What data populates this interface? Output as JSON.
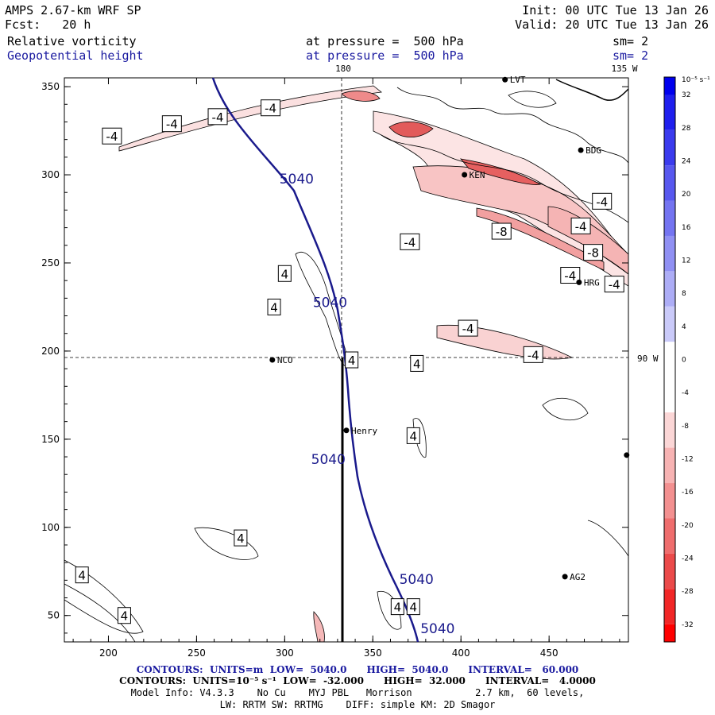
{
  "header": {
    "model": "AMPS 2.67-km WRF SP",
    "fcst": "Fcst:   20 h",
    "init": "Init: 00 UTC Tue 13 Jan 26",
    "valid": "Valid: 20 UTC Tue 13 Jan 26",
    "field1": "Relative vorticity",
    "field2": "Geopotential height",
    "level1": "at pressure =  500 hPa",
    "level2": "at pressure =  500 hPa",
    "sm1": "sm= 2",
    "sm2": "sm= 2"
  },
  "map_labels": {
    "lon_180": "180",
    "lon_135w": "135 W",
    "lat_90w": "90 W"
  },
  "axes": {
    "x_ticks": [
      "200",
      "250",
      "300",
      "350",
      "400",
      "450"
    ],
    "y_ticks": [
      "350",
      "300",
      "250",
      "200",
      "150",
      "100",
      "50"
    ]
  },
  "stations": [
    {
      "name": "LVT",
      "x": 425,
      "y": 354
    },
    {
      "name": "BDG",
      "x": 468,
      "y": 314
    },
    {
      "name": "KEN",
      "x": 402,
      "y": 300
    },
    {
      "name": "HRG",
      "x": 467,
      "y": 239
    },
    {
      "name": "NCO",
      "x": 293,
      "y": 195
    },
    {
      "name": "Henry",
      "x": 335,
      "y": 155
    },
    {
      "name": "AG2",
      "x": 459,
      "y": 72
    },
    {
      "name": "",
      "x": 494,
      "y": 141
    }
  ],
  "height_labels": [
    {
      "text": "5040",
      "x": 297,
      "y": 295
    },
    {
      "text": "5040",
      "x": 316,
      "y": 225
    },
    {
      "text": "5040",
      "x": 315,
      "y": 136
    },
    {
      "text": "5040",
      "x": 365,
      "y": 68
    },
    {
      "text": "5040",
      "x": 377,
      "y": 40
    }
  ],
  "vort_labels": [
    {
      "text": "-4",
      "x": 202,
      "y": 322
    },
    {
      "text": "-4",
      "x": 236,
      "y": 329
    },
    {
      "text": "-4",
      "x": 262,
      "y": 333
    },
    {
      "text": "-4",
      "x": 292,
      "y": 338
    },
    {
      "text": "-4",
      "x": 480,
      "y": 285
    },
    {
      "text": "-8",
      "x": 423,
      "y": 268
    },
    {
      "text": "-4",
      "x": 371,
      "y": 262
    },
    {
      "text": "-4",
      "x": 468,
      "y": 271
    },
    {
      "text": "-8",
      "x": 475,
      "y": 256
    },
    {
      "text": "-4",
      "x": 462,
      "y": 243
    },
    {
      "text": "-4",
      "x": 487,
      "y": 238
    },
    {
      "text": "-4",
      "x": 404,
      "y": 213
    },
    {
      "text": "-4",
      "x": 441,
      "y": 198
    },
    {
      "text": "4",
      "x": 300,
      "y": 244
    },
    {
      "text": "4",
      "x": 294,
      "y": 225
    },
    {
      "text": "4",
      "x": 338,
      "y": 195
    },
    {
      "text": "4",
      "x": 375,
      "y": 193
    },
    {
      "text": "4",
      "x": 373,
      "y": 152
    },
    {
      "text": "4",
      "x": 275,
      "y": 94
    },
    {
      "text": "4",
      "x": 185,
      "y": 73
    },
    {
      "text": "4",
      "x": 209,
      "y": 50
    },
    {
      "text": "4",
      "x": 364,
      "y": 55
    },
    {
      "text": "4",
      "x": 373,
      "y": 55
    }
  ],
  "colorbar": {
    "unit": "10⁻⁵ s⁻¹",
    "labels": [
      "32",
      "28",
      "24",
      "20",
      "16",
      "12",
      "8",
      "4",
      "0",
      "-4",
      "-8",
      "-12",
      "-16",
      "-20",
      "-24",
      "-28",
      "-32"
    ],
    "colors": [
      "#0000ee",
      "#1f1fee",
      "#3b3bee",
      "#5858ef",
      "#7474f1",
      "#9090f3",
      "#adadf6",
      "#cacaf9",
      "#ffffff",
      "#ffffff",
      "#fbd6d6",
      "#f7b3b3",
      "#f39090",
      "#ef6d6d",
      "#eb4a4a",
      "#f22727",
      "#ff0000"
    ]
  },
  "footer": {
    "line1": "CONTOURS:  UNITS=m  LOW=  5040.0      HIGH=  5040.0      INTERVAL=   60.000",
    "line2": "CONTOURS:  UNITS=10⁻⁵ s⁻¹  LOW=  -32.000      HIGH=  32.000      INTERVAL=   4.0000",
    "line3": "Model Info: V4.3.3    No Cu    MYJ PBL   Morrison           2.7 km,  60 levels,",
    "line4": "LW: RRTM SW: RRTMG    DIFF: simple KM: 2D Smagor"
  }
}
